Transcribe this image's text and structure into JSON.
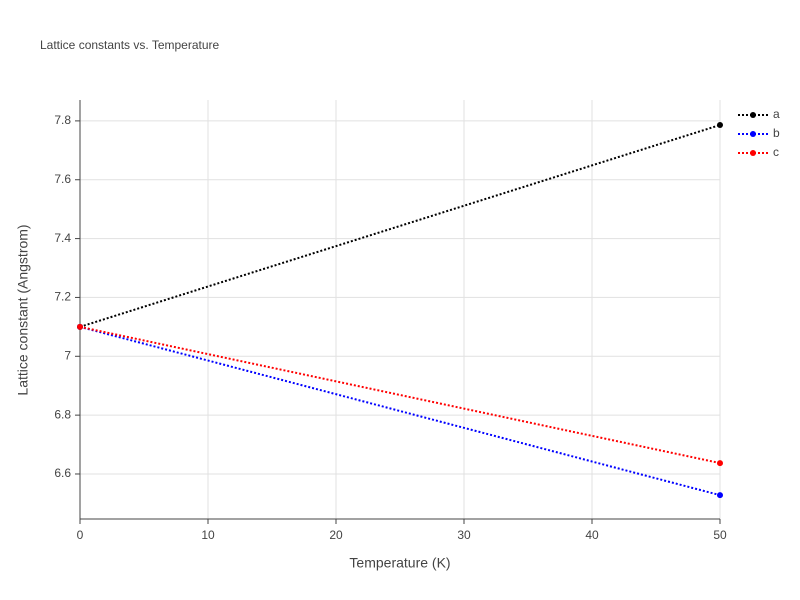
{
  "chart_data": {
    "type": "line",
    "title": "Lattice constants vs. Temperature",
    "x_label": "Temperature (K)",
    "y_label": "Lattice constant (Angstrom)",
    "x": [
      0,
      50
    ],
    "series": [
      {
        "name": "a",
        "color": "#000000",
        "values": [
          7.1,
          7.786
        ]
      },
      {
        "name": "b",
        "color": "#0000ff",
        "values": [
          7.1,
          6.528
        ]
      },
      {
        "name": "c",
        "color": "#ff0000",
        "values": [
          7.1,
          6.637
        ]
      }
    ],
    "xlim": [
      0,
      50
    ],
    "xticks": [
      0,
      10,
      20,
      30,
      40,
      50
    ],
    "ylim": [
      6.447,
      7.871
    ],
    "yticks": [
      6.6,
      6.8,
      7,
      7.2,
      7.4,
      7.6,
      7.8
    ],
    "grid": true,
    "line_style": "dotted",
    "legend": "right"
  }
}
